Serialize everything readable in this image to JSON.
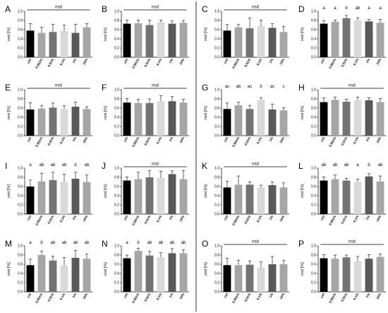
{
  "figure": {
    "colors": {
      "bar_fills": [
        "#000000",
        "#a6a6a6",
        "#737373",
        "#d9d9d9",
        "#595959",
        "#a6a6a6"
      ],
      "axis": "#000000",
      "error_bar": "#000000",
      "divider": "#000000"
    }
  },
  "chart_data": [
    {
      "panel": "A",
      "type": "bar",
      "categories": [
        "ctrl",
        "0.001%",
        "0.01%",
        "0.1%",
        "1%",
        "10%"
      ],
      "ylabel": "rest [%]",
      "ylim": [
        0,
        1.0
      ],
      "yticks": [
        "0.0",
        "0.2",
        "0.4",
        "0.6",
        "0.8",
        "1.0"
      ],
      "values": [
        0.58,
        0.53,
        0.55,
        0.57,
        0.53,
        0.65
      ],
      "errors": [
        0.15,
        0.12,
        0.17,
        0.13,
        0.19,
        0.08
      ],
      "bracket_label": "nsd",
      "group_labels": []
    },
    {
      "panel": "B",
      "type": "bar",
      "categories": [
        "ctrl",
        "0.001%",
        "0.01%",
        "0.1%",
        "1%",
        "10%"
      ],
      "ylabel": "rest [%]",
      "ylim": [
        0,
        1.0
      ],
      "yticks": [
        "0.0",
        "0.2",
        "0.4",
        "0.6",
        "0.8",
        "1.0"
      ],
      "values": [
        0.73,
        0.74,
        0.7,
        0.76,
        0.73,
        0.75
      ],
      "errors": [
        0.08,
        0.07,
        0.11,
        0.05,
        0.06,
        0.05
      ],
      "bracket_label": "nsd",
      "group_labels": []
    },
    {
      "panel": "C",
      "type": "bar",
      "categories": [
        "ctrl",
        "0.001%",
        "0.01%",
        "0.1%",
        "1%",
        "10%"
      ],
      "ylabel": "rest [%]",
      "ylim": [
        0,
        1.0
      ],
      "yticks": [
        "0.0",
        "0.2",
        "0.4",
        "0.6",
        "0.8",
        "1.0"
      ],
      "values": [
        0.58,
        0.65,
        0.63,
        0.68,
        0.64,
        0.55
      ],
      "errors": [
        0.13,
        0.07,
        0.22,
        0.13,
        0.09,
        0.12
      ],
      "bracket_label": "nsd",
      "group_labels": []
    },
    {
      "panel": "D",
      "type": "bar",
      "categories": [
        "ctrl",
        "0.001%",
        "0.01%",
        "0.1%",
        "1%",
        "10%"
      ],
      "ylabel": "rest [%]",
      "ylim": [
        0,
        1.0
      ],
      "yticks": [
        "0.0",
        "0.2",
        "0.4",
        "0.6",
        "0.8",
        "1.0"
      ],
      "values": [
        0.73,
        0.77,
        0.85,
        0.8,
        0.78,
        0.75
      ],
      "errors": [
        0.07,
        0.04,
        0.06,
        0.06,
        0.04,
        0.07
      ],
      "bracket_label": "",
      "group_labels": [
        "a",
        "a",
        "b",
        "ab",
        "a",
        "a"
      ]
    },
    {
      "panel": "E",
      "type": "bar",
      "categories": [
        "ctrl",
        "0.001%",
        "0.01%",
        "0.1%",
        "1%",
        "10%"
      ],
      "ylabel": "rest [%]",
      "ylim": [
        0,
        1.0
      ],
      "yticks": [
        "0.0",
        "0.2",
        "0.4",
        "0.6",
        "0.8",
        "1.0"
      ],
      "values": [
        0.57,
        0.59,
        0.61,
        0.58,
        0.63,
        0.58
      ],
      "errors": [
        0.15,
        0.07,
        0.1,
        0.07,
        0.1,
        0.05
      ],
      "bracket_label": "nsd",
      "group_labels": []
    },
    {
      "panel": "F",
      "type": "bar",
      "categories": [
        "ctrl",
        "0.001%",
        "0.01%",
        "0.1%",
        "1%",
        "10%"
      ],
      "ylabel": "rest [%]",
      "ylim": [
        0,
        1.0
      ],
      "yticks": [
        "0.0",
        "0.2",
        "0.4",
        "0.6",
        "0.8",
        "1.0"
      ],
      "values": [
        0.72,
        0.71,
        0.71,
        0.75,
        0.75,
        0.72
      ],
      "errors": [
        0.09,
        0.08,
        0.09,
        0.12,
        0.1,
        0.07
      ],
      "bracket_label": "nsd",
      "group_labels": []
    },
    {
      "panel": "G",
      "type": "bar",
      "categories": [
        "ctrl",
        "0.001%",
        "0.01%",
        "0.1%",
        "1%",
        "10%"
      ],
      "ylabel": "rest [%]",
      "ylim": [
        0,
        1.0
      ],
      "yticks": [
        "0.0",
        "0.2",
        "0.4",
        "0.6",
        "0.8",
        "1.0"
      ],
      "values": [
        0.58,
        0.66,
        0.58,
        0.78,
        0.57,
        0.55
      ],
      "errors": [
        0.13,
        0.07,
        0.08,
        0.05,
        0.12,
        0.06
      ],
      "bracket_label": "",
      "group_labels": [
        "ac",
        "ab",
        "ac",
        "b",
        "ac",
        "c"
      ]
    },
    {
      "panel": "H",
      "type": "bar",
      "categories": [
        "ctrl",
        "0.001%",
        "0.01%",
        "0.1%",
        "1%",
        "10%"
      ],
      "ylabel": "rest [%]",
      "ylim": [
        0,
        1.0
      ],
      "yticks": [
        "0.0",
        "0.2",
        "0.4",
        "0.6",
        "0.8",
        "1.0"
      ],
      "values": [
        0.73,
        0.78,
        0.74,
        0.77,
        0.77,
        0.73
      ],
      "errors": [
        0.09,
        0.06,
        0.05,
        0.07,
        0.05,
        0.08
      ],
      "bracket_label": "nsd",
      "group_labels": []
    },
    {
      "panel": "I",
      "type": "bar",
      "categories": [
        "ctrl",
        "0.001%",
        "0.01%",
        "0.1%",
        "1%",
        "10%"
      ],
      "ylabel": "rest [%]",
      "ylim": [
        0,
        1.0
      ],
      "yticks": [
        "0.0",
        "0.2",
        "0.4",
        "0.6",
        "0.8",
        "1.0"
      ],
      "values": [
        0.6,
        0.71,
        0.74,
        0.7,
        0.77,
        0.7
      ],
      "errors": [
        0.14,
        0.18,
        0.17,
        0.17,
        0.14,
        0.15
      ],
      "bracket_label": "",
      "group_labels": [
        "a",
        "ab",
        "ab",
        "ab",
        "b",
        "ab"
      ]
    },
    {
      "panel": "J",
      "type": "bar",
      "categories": [
        "ctrl",
        "0.001%",
        "0.01%",
        "0.1%",
        "1%",
        "10%"
      ],
      "ylabel": "rest [%]",
      "ylim": [
        0,
        1.0
      ],
      "yticks": [
        "0.0",
        "0.2",
        "0.4",
        "0.6",
        "0.8",
        "1.0"
      ],
      "values": [
        0.73,
        0.76,
        0.8,
        0.79,
        0.87,
        0.76
      ],
      "errors": [
        0.08,
        0.15,
        0.15,
        0.14,
        0.07,
        0.19
      ],
      "bracket_label": "nsd",
      "group_labels": []
    },
    {
      "panel": "K",
      "type": "bar",
      "categories": [
        "ctrl",
        "0.001%",
        "0.01%",
        "0.1%",
        "1%",
        "10%"
      ],
      "ylabel": "rest [%]",
      "ylim": [
        0,
        1.0
      ],
      "yticks": [
        "0.0",
        "0.2",
        "0.4",
        "0.6",
        "0.8",
        "1.0"
      ],
      "values": [
        0.58,
        0.64,
        0.64,
        0.58,
        0.63,
        0.58
      ],
      "errors": [
        0.14,
        0.19,
        0.06,
        0.05,
        0.07,
        0.1
      ],
      "bracket_label": "nsd",
      "group_labels": []
    },
    {
      "panel": "L",
      "type": "bar",
      "categories": [
        "ctrl",
        "0.001%",
        "0.01%",
        "0.1%",
        "1%",
        "10%"
      ],
      "ylabel": "rest [%]",
      "ylim": [
        0,
        1.0
      ],
      "yticks": [
        "0.0",
        "0.2",
        "0.4",
        "0.6",
        "0.8",
        "1.0"
      ],
      "values": [
        0.73,
        0.76,
        0.73,
        0.7,
        0.82,
        0.71
      ],
      "errors": [
        0.08,
        0.09,
        0.05,
        0.06,
        0.06,
        0.12
      ],
      "bracket_label": "",
      "group_labels": [
        "ab",
        "ab",
        "ab",
        "a",
        "b",
        "ab"
      ]
    },
    {
      "panel": "M",
      "type": "bar",
      "categories": [
        "ctrl",
        "0.001%",
        "0.01%",
        "0.1%",
        "1%",
        "10%"
      ],
      "ylabel": "rest [%]",
      "ylim": [
        0,
        1.0
      ],
      "yticks": [
        "0.0",
        "0.2",
        "0.4",
        "0.6",
        "0.8",
        "1.0"
      ],
      "values": [
        0.58,
        0.8,
        0.68,
        0.58,
        0.74,
        0.72
      ],
      "errors": [
        0.13,
        0.09,
        0.1,
        0.17,
        0.16,
        0.1
      ],
      "bracket_label": "",
      "group_labels": [
        "a",
        "b",
        "ab",
        "ab",
        "ab",
        "ab"
      ]
    },
    {
      "panel": "N",
      "type": "bar",
      "categories": [
        "ctrl",
        "0.001%",
        "0.01%",
        "0.1%",
        "1%",
        "10%"
      ],
      "ylabel": "rest [%]",
      "ylim": [
        0,
        1.0
      ],
      "yticks": [
        "0.0",
        "0.2",
        "0.4",
        "0.6",
        "0.8",
        "1.0"
      ],
      "values": [
        0.73,
        0.89,
        0.79,
        0.75,
        0.84,
        0.84
      ],
      "errors": [
        0.07,
        0.06,
        0.09,
        0.1,
        0.1,
        0.08
      ],
      "bracket_label": "",
      "group_labels": [
        "a",
        "b",
        "ab",
        "ab",
        "ab",
        "ab"
      ]
    },
    {
      "panel": "O",
      "type": "bar",
      "categories": [
        "ctrl",
        "0.001%",
        "0.01%",
        "0.1%",
        "1%",
        "10%"
      ],
      "ylabel": "rest [%]",
      "ylim": [
        0,
        1.0
      ],
      "yticks": [
        "0.0",
        "0.2",
        "0.4",
        "0.6",
        "0.8",
        "1.0"
      ],
      "values": [
        0.58,
        0.58,
        0.59,
        0.53,
        0.6,
        0.6
      ],
      "errors": [
        0.15,
        0.11,
        0.08,
        0.12,
        0.17,
        0.09
      ],
      "bracket_label": "nsd",
      "group_labels": []
    },
    {
      "panel": "P",
      "type": "bar",
      "categories": [
        "ctrl",
        "0.001%",
        "0.01%",
        "0.1%",
        "1%",
        "10%"
      ],
      "ylabel": "rest [%]",
      "ylim": [
        0,
        1.0
      ],
      "yticks": [
        "0.0",
        "0.2",
        "0.4",
        "0.6",
        "0.8",
        "1.0"
      ],
      "values": [
        0.73,
        0.72,
        0.75,
        0.66,
        0.72,
        0.76
      ],
      "errors": [
        0.08,
        0.08,
        0.05,
        0.11,
        0.09,
        0.06
      ],
      "bracket_label": "nsd",
      "group_labels": []
    }
  ]
}
